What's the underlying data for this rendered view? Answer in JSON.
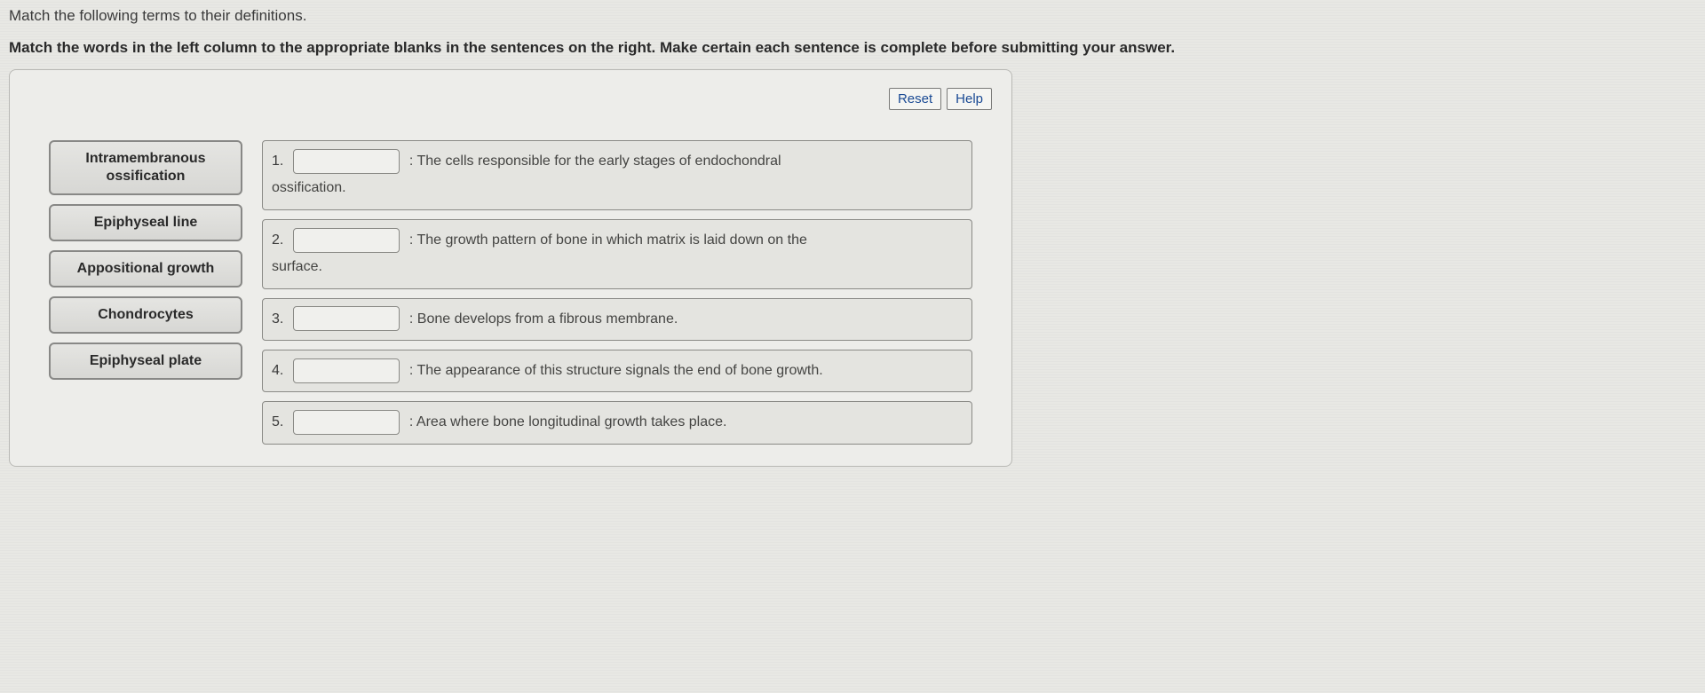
{
  "prompt": {
    "line1": "Match the following terms to their definitions.",
    "line2": "Match the words in the left column to the appropriate blanks in the sentences on the right. Make certain each sentence is complete before submitting your answer."
  },
  "buttons": {
    "reset": "Reset",
    "help": "Help"
  },
  "terms": {
    "t1": "Intramembranous ossification",
    "t2": "Epiphyseal line",
    "t3": "Appositional growth",
    "t4": "Chondrocytes",
    "t5": "Epiphyseal plate"
  },
  "sentences": {
    "s1": {
      "num": "1.",
      "before": ": The cells responsible for the early stages of endochondral",
      "after": "ossification."
    },
    "s2": {
      "num": "2.",
      "before": ": The growth pattern of bone in which matrix is laid down on the",
      "after": "surface."
    },
    "s3": {
      "num": "3.",
      "before": ": Bone develops from a fibrous membrane."
    },
    "s4": {
      "num": "4.",
      "before": ": The appearance of this structure signals the end of bone growth."
    },
    "s5": {
      "num": "5.",
      "before": ": Area where bone longitudinal growth takes place."
    }
  },
  "colors": {
    "background": "#e8e8e4",
    "panel_border": "#b8b8b4",
    "term_border": "#888886",
    "sentence_border": "#8a8a86",
    "button_text": "#1a4a94"
  }
}
